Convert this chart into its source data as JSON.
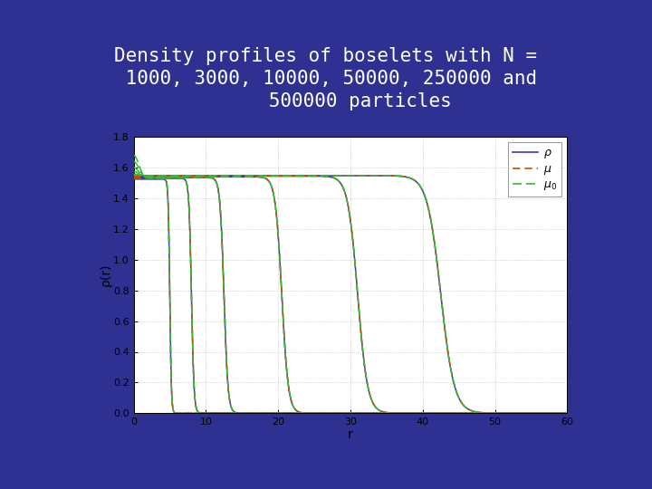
{
  "xlabel": "r",
  "ylabel": "ρ(r)",
  "background_color": "#2e3191",
  "plot_bg": "#ffffff",
  "xlim": [
    0,
    60
  ],
  "ylim": [
    0,
    1.8
  ],
  "yticks": [
    0,
    0.2,
    0.4,
    0.6,
    0.8,
    1.0,
    1.2,
    1.4,
    1.6,
    1.8
  ],
  "xticks": [
    0,
    10,
    20,
    30,
    40,
    50,
    60
  ],
  "radii": [
    5.0,
    8.0,
    12.5,
    20.5,
    31.0,
    42.5
  ],
  "rho_flat": [
    1.525,
    1.53,
    1.535,
    1.54,
    1.545,
    1.548
  ],
  "mu_flat": [
    1.53,
    1.533,
    1.537,
    1.541,
    1.546,
    1.549
  ],
  "mu0_peak_heights": [
    1.68,
    1.64,
    1.6,
    1.575,
    1.558,
    1.553
  ],
  "rho_color": "#3a3aaa",
  "mu_color": "#bb5500",
  "mu0_color": "#33bb33",
  "line_width": 1.1,
  "title_color": "#ffffff",
  "title_fontsize": 15,
  "axis_label_fontsize": 10,
  "tick_fontsize": 8,
  "legend_fontsize": 9,
  "grid_color": "#9999bb",
  "grid_alpha": 0.6,
  "sharpness": 0.022
}
